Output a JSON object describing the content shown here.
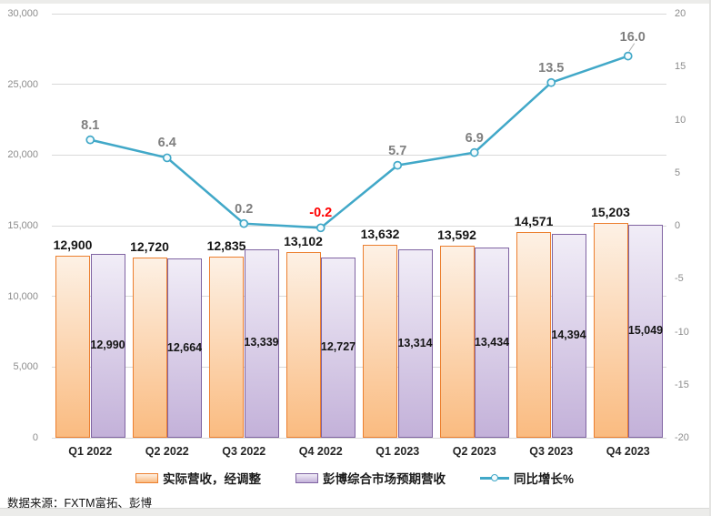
{
  "source_note": "数据来源：FXTM富拓、彭博",
  "chart_data": {
    "type": "combo-bar-line",
    "categories": [
      "Q1 2022",
      "Q2 2022",
      "Q3 2022",
      "Q4 2022",
      "Q1 2023",
      "Q2 2023",
      "Q3 2023",
      "Q4 2023"
    ],
    "series": [
      {
        "name": "实际营收，经调整",
        "type": "bar",
        "axis": "left",
        "values": [
          12900,
          12720,
          12835,
          13102,
          13632,
          13592,
          14571,
          15203
        ],
        "labels": [
          "12,900",
          "12,720",
          "12,835",
          "13,102",
          "13,632",
          "13,592",
          "14,571",
          "15,203"
        ]
      },
      {
        "name": "彭博综合市场预期营收",
        "type": "bar",
        "axis": "left",
        "values": [
          12990,
          12664,
          13339,
          12727,
          13314,
          13434,
          14394,
          15049
        ],
        "labels": [
          "12,990",
          "12,664",
          "13,339",
          "12,727",
          "13,314",
          "13,434",
          "14,394",
          "15,049"
        ]
      },
      {
        "name": "同比增长%",
        "type": "line",
        "axis": "right",
        "values": [
          8.1,
          6.4,
          0.2,
          -0.2,
          5.7,
          6.9,
          13.5,
          16.0
        ],
        "labels": [
          "8.1",
          "6.4",
          "0.2",
          "-0.2",
          "5.7",
          "6.9",
          "13.5",
          "16.0"
        ]
      }
    ],
    "left_axis": {
      "min": 0,
      "max": 30000,
      "tick_labels": [
        "30,000",
        "25,000",
        "20,000",
        "15,000",
        "10,000",
        "5,000",
        "0"
      ]
    },
    "right_axis": {
      "min": -20,
      "max": 20,
      "tick_labels": [
        "20",
        "15",
        "10",
        "5",
        "0",
        "-5",
        "-10",
        "-15",
        "-20"
      ]
    },
    "grid": true,
    "legend_position": "bottom",
    "colors": {
      "actual_fill_top": "#FDF1E5",
      "actual_fill_bottom": "#FABB80",
      "actual_border": "#EC7F2F",
      "estimate_fill_top": "#F1EDF7",
      "estimate_fill_bottom": "#C3B1D9",
      "estimate_border": "#8064A2",
      "line": "#41A8C8",
      "marker_fill": "#F4FBFD",
      "gridline": "#D9D9D9",
      "negative_label": "#FF0000",
      "line_label": "#7F7F7F"
    }
  }
}
